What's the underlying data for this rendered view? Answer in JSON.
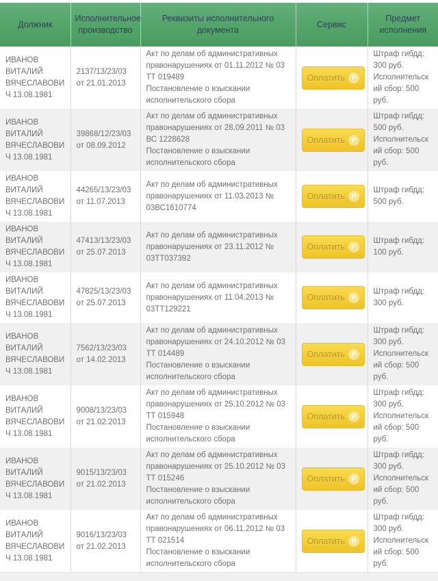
{
  "colors": {
    "header_green_top": "#66b07d",
    "header_green_bottom": "#4c9b62",
    "header_text": "#2e4156",
    "zebra_row": "#f0f0f0",
    "cell_border": "#d8d8d8",
    "body_text": "#6f6f6f",
    "button_yellow_top": "#f9db52",
    "button_yellow_bottom": "#edc428",
    "button_text": "#bb9221"
  },
  "table": {
    "columns": [
      {
        "label": "Должник"
      },
      {
        "label": "Исполнительное производство"
      },
      {
        "label": "Реквизиты исполнительного документа"
      },
      {
        "label": "Сервис"
      },
      {
        "label": "Предмет исполнения"
      }
    ],
    "pay_button_label": "Оплатить",
    "pay_button_currency": "Р",
    "rows": [
      {
        "debtor": "ИВАНОВ ВИТАЛИЙ ВЯЧЕСЛАВОВИЧ 13.08.1981",
        "proceeding": "2137/13/23/03 от 21.01.2013",
        "document_lines": [
          "Акт по делам об административных правонарушениях от 01.11.2012 № 03 ТТ 019489",
          "Постановление о взыскании исполнительского сбора"
        ],
        "subject_lines": [
          "Штраф гибдд: 300 руб.",
          "Исполнительский сбор: 500 руб."
        ]
      },
      {
        "debtor": "ИВАНОВ ВИТАЛИЙ ВЯЧЕСЛАВОВИЧ 13.08.1981",
        "proceeding": "39868/12/23/03 от 08.09.2012",
        "document_lines": [
          "Акт по делам об административных правонарушениях от 28.09.2011 № 03 ВС 1228628",
          "Постановление о взыскании исполнительского сбора"
        ],
        "subject_lines": [
          "Штраф гибдд: 500 руб.",
          "Исполнительский сбор: 500 руб."
        ]
      },
      {
        "debtor": "ИВАНОВ ВИТАЛИЙ ВЯЧЕСЛАВОВИЧ 13.08.1981",
        "proceeding": "44265/13/23/03 от 11.07.2013",
        "document_lines": [
          "Акт по делам об административных правонарушениях от 11.03.2013 № 03ВС1610774"
        ],
        "subject_lines": [
          "Штраф гибдд: 500 руб."
        ]
      },
      {
        "debtor": "ИВАНОВ ВИТАЛИЙ ВЯЧЕСЛАВОВИЧ 13.08.1981",
        "proceeding": "47413/13/23/03 от 25.07.2013",
        "document_lines": [
          "Акт по делам об административных правонарушениях от 23.11.2012 № 03ТТ037392"
        ],
        "subject_lines": [
          "Штраф гибдд: 100 руб."
        ]
      },
      {
        "debtor": "ИВАНОВ ВИТАЛИЙ ВЯЧЕСЛАВОВИЧ 13.08.1981",
        "proceeding": "47825/13/23/03 от 25.07.2013",
        "document_lines": [
          "Акт по делам об административных правонарушениях от 11.04.2013 № 03ТТ129221"
        ],
        "subject_lines": [
          "Штраф гибдд: 300 руб."
        ]
      },
      {
        "debtor": "ИВАНОВ ВИТАЛИЙ ВЯЧЕСЛАВОВИЧ 13.08.1981",
        "proceeding": "7562/13/23/03 от 14.02.2013",
        "document_lines": [
          "Акт по делам об административных правонарушениях от 24.10.2012 № 03 ТТ 014489",
          "Постановление о взыскании исполнительского сбора"
        ],
        "subject_lines": [
          "Штраф гибдд: 300 руб.",
          "Исполнительский сбор: 500 руб."
        ]
      },
      {
        "debtor": "ИВАНОВ ВИТАЛИЙ ВЯЧЕСЛАВОВИЧ 13.08.1981",
        "proceeding": "9008/13/23/03 от 21.02.2013",
        "document_lines": [
          "Акт по делам об административных правонарушениях от 25.10.2012 № 03 ТТ 015948",
          "Постановление о взыскании исполнительского сбора"
        ],
        "subject_lines": [
          "Штраф гибдд: 300 руб.",
          "Исполнительский сбор: 500 руб."
        ]
      },
      {
        "debtor": "ИВАНОВ ВИТАЛИЙ ВЯЧЕСЛАВОВИЧ 13.08.1981",
        "proceeding": "9015/13/23/03 от 21.02.2013",
        "document_lines": [
          "Акт по делам об административных правонарушениях от 25.10.2012 № 03 ТТ 015246",
          "Постановление о взыскании исполнительского сбора"
        ],
        "subject_lines": [
          "Штраф гибдд: 300 руб.",
          "Исполнительский сбор: 500 руб."
        ]
      },
      {
        "debtor": "ИВАНОВ ВИТАЛИЙ ВЯЧЕСЛАВОВИЧ 13.08.1981",
        "proceeding": "9016/13/23/03 от 21.02.2013",
        "document_lines": [
          "Акт по делам об административных правонарушениях от 06.11.2012 № 03 ТТ 021514",
          "Постановление о взыскании исполнительского сбора"
        ],
        "subject_lines": [
          "Штраф гибдд: 300 руб.",
          "Исполнительский сбор: 500 руб."
        ]
      }
    ]
  }
}
